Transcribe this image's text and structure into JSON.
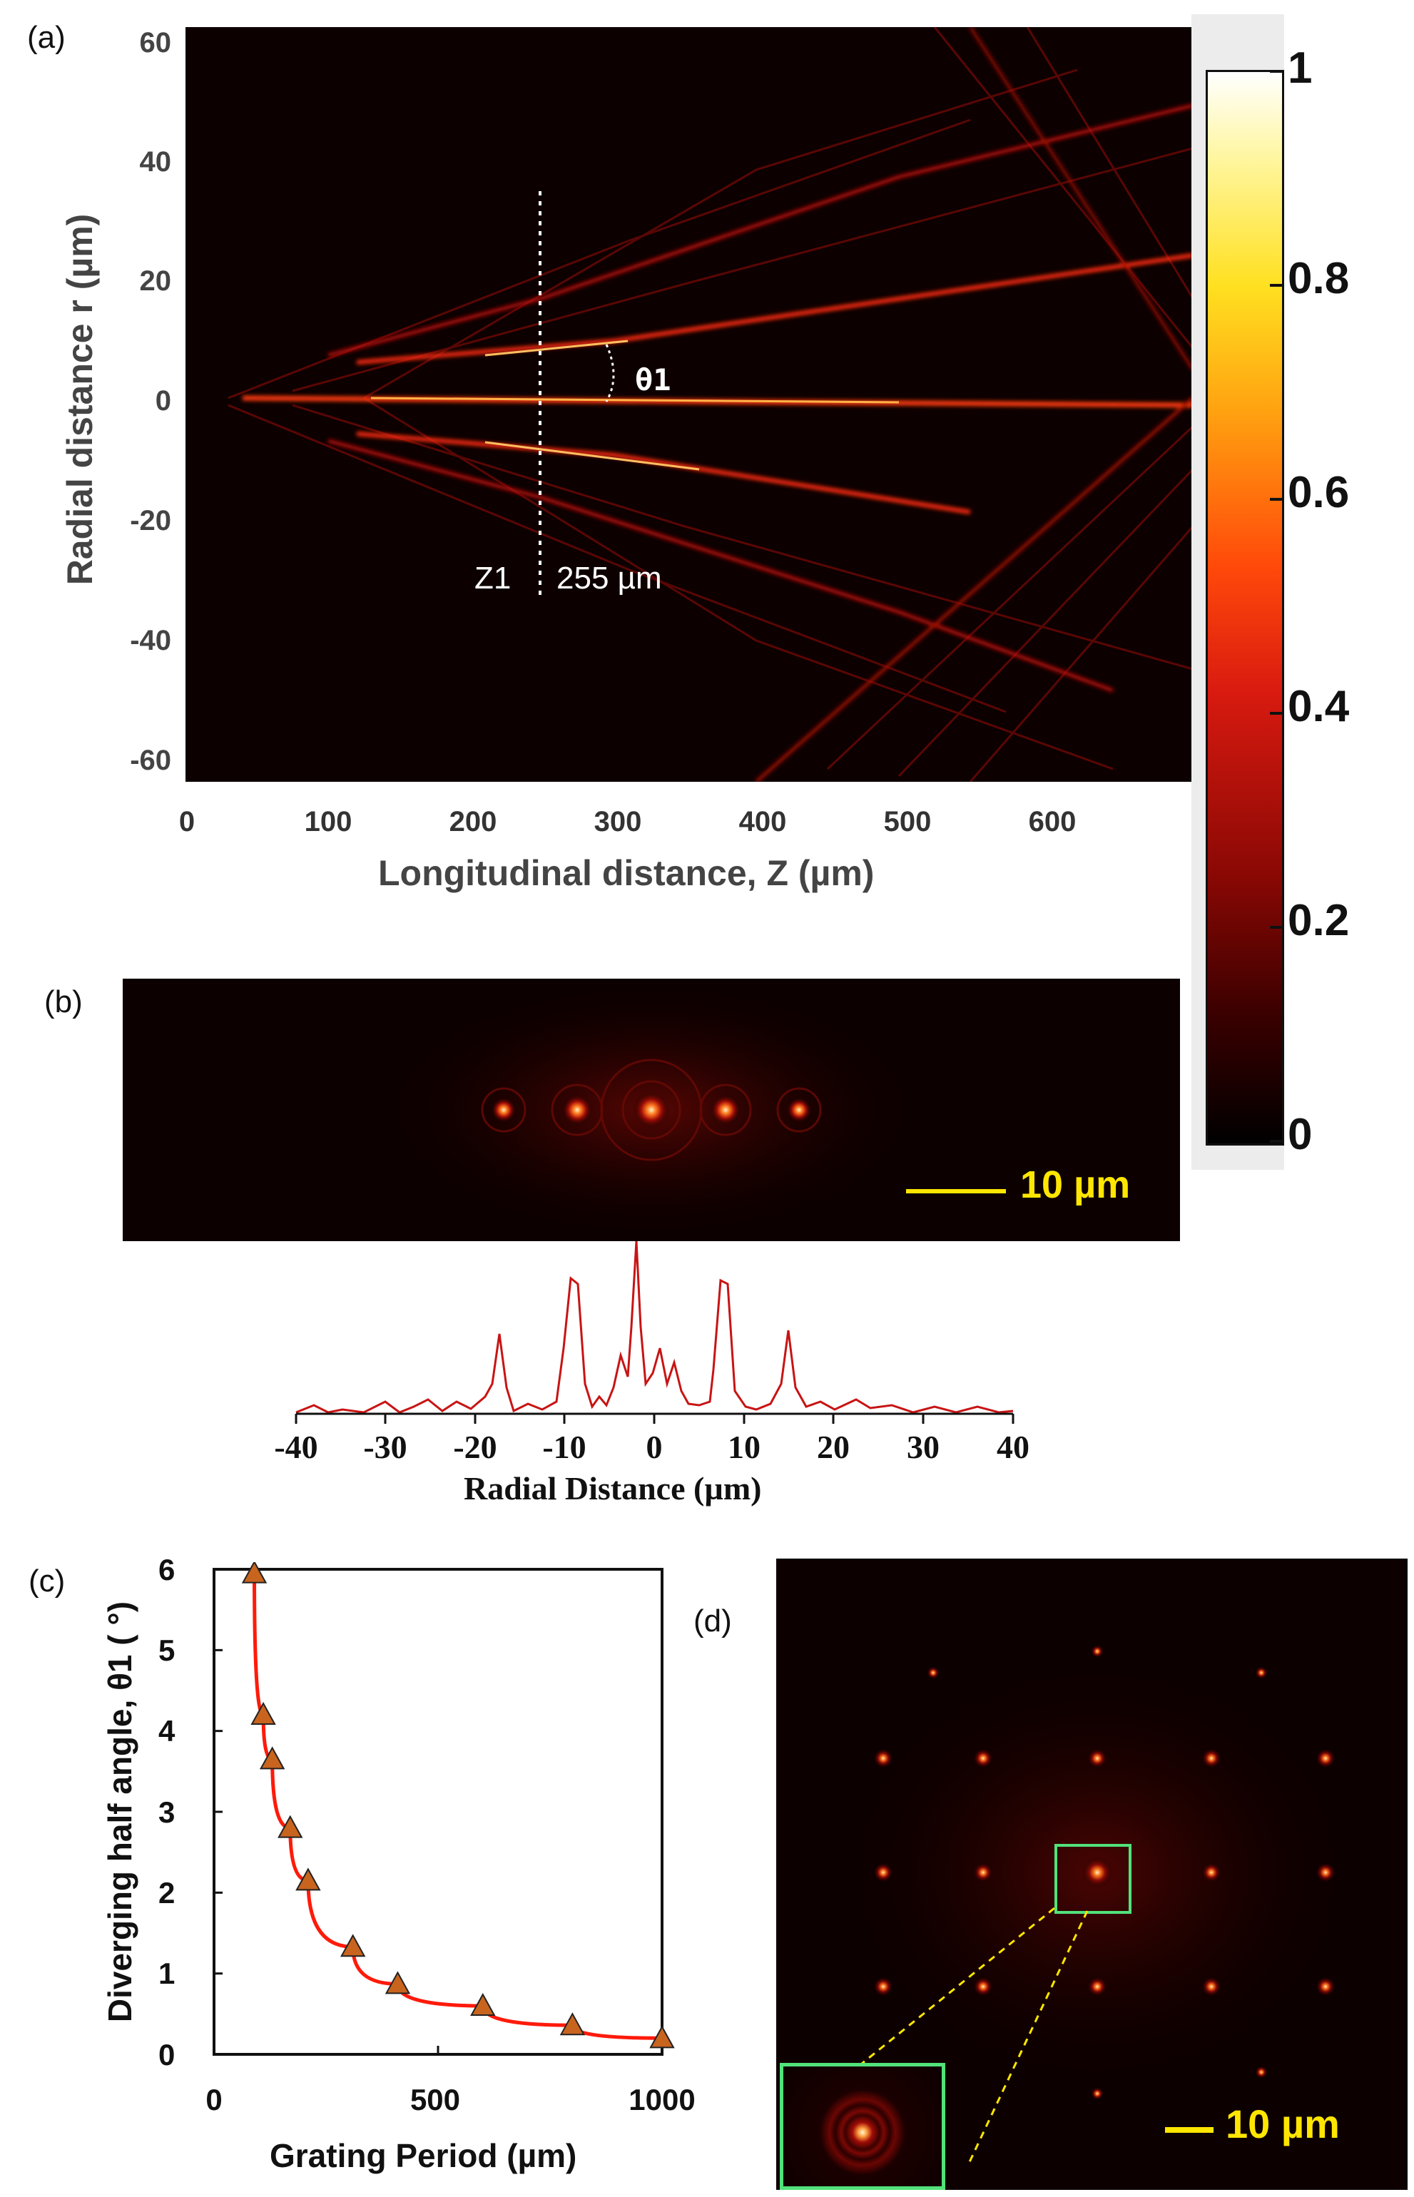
{
  "panels": {
    "a": {
      "label": "(a)",
      "xlabel": "Longitudinal distance, Z (µm)",
      "ylabel": "Radial distance r (µm)",
      "xticks": [
        "0",
        "100",
        "200",
        "300",
        "400",
        "500",
        "600"
      ],
      "yticks": [
        "60",
        "40",
        "20",
        "0",
        "-20",
        "-40",
        "-60"
      ],
      "annotation_angle": "θ1",
      "annotation_z_name": "Z1",
      "annotation_z_value": "255 µm"
    },
    "colorbar": {
      "ticks": [
        "1",
        "0.8",
        "0.6",
        "0.4",
        "0.2",
        "0"
      ]
    },
    "b": {
      "label": "(b)",
      "scalebar": "10 µm",
      "profile_xlabel": "Radial Distance (µm)",
      "profile_xticks": [
        "-40",
        "-30",
        "-20",
        "-10",
        "0",
        "10",
        "20",
        "30",
        "40"
      ]
    },
    "c": {
      "label": "(c)",
      "xlabel": "Grating Period (µm)",
      "ylabel": "Diverging half angle, θ1 ( °)",
      "xticks": [
        "0",
        "500",
        "1000"
      ],
      "yticks": [
        "0",
        "1",
        "2",
        "3",
        "4",
        "5",
        "6"
      ]
    },
    "d": {
      "label": "(d)",
      "scalebar": "10 µm"
    }
  },
  "chart_data": [
    {
      "type": "scatter",
      "xlabel": "Grating Period (µm)",
      "ylabel": "Diverging half angle, θ1 ( °)",
      "xlim": [
        0,
        1000
      ],
      "ylim": [
        0,
        6
      ],
      "series": [
        {
          "x": [
            90,
            110,
            130,
            170,
            210,
            310,
            410,
            600,
            800,
            1000
          ],
          "y": [
            5.95,
            4.2,
            3.65,
            2.8,
            2.15,
            1.33,
            0.87,
            0.6,
            0.36,
            0.2
          ]
        }
      ],
      "fit_curve": true
    },
    {
      "type": "line",
      "xlabel": "Radial Distance (µm)",
      "xlim": [
        -40,
        40
      ],
      "peaks_x": [
        -16.5,
        -8.5,
        0,
        8.5,
        16.5
      ]
    }
  ],
  "colors": {
    "accent_red": "#e01010",
    "marker_fill": "#c8641e",
    "scalebar_yellow": "#ffe600",
    "inset_green": "#52e27a"
  }
}
